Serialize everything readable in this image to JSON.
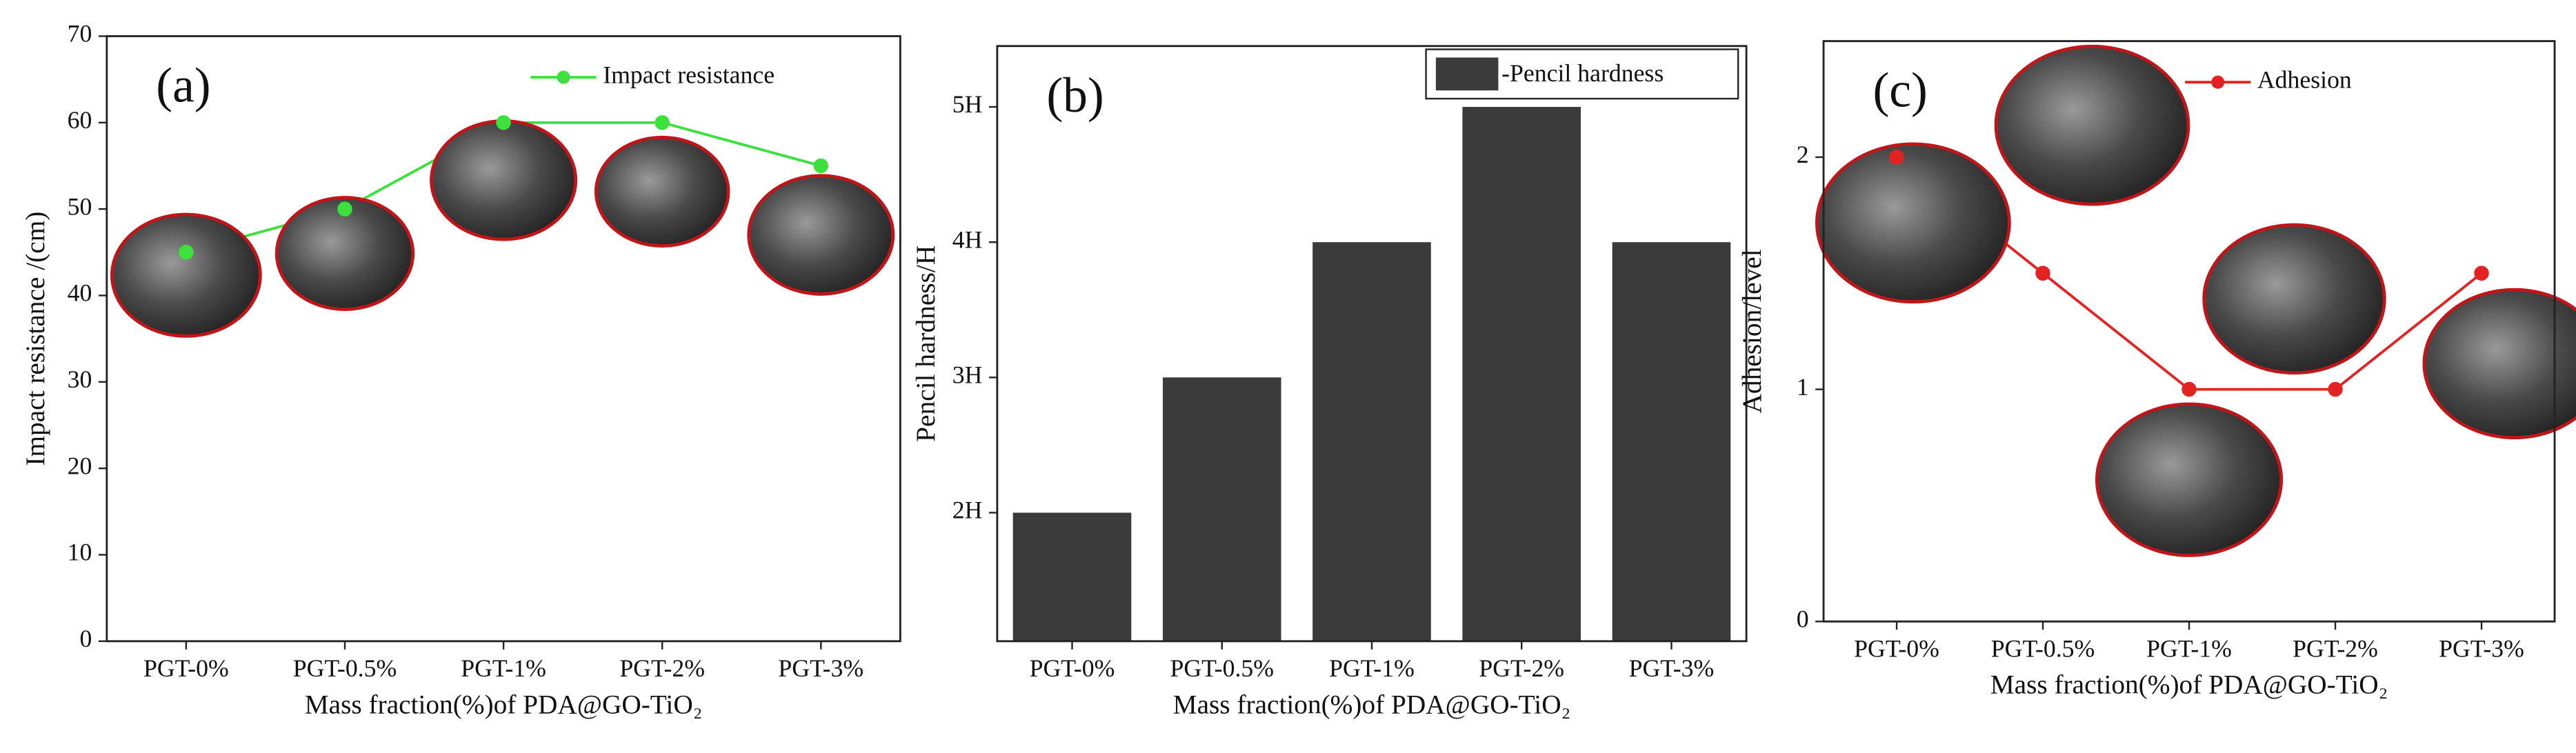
{
  "chart_data": [
    {
      "type": "line",
      "panel_label": "(a)",
      "x_label": "Mass fraction(%)of PDA@GO-TiO₂",
      "y_label": "Impact resistance /(cm)",
      "categories": [
        "PGT-0%",
        "PGT-0.5%",
        "PGT-1%",
        "PGT-2%",
        "PGT-3%"
      ],
      "series": [
        {
          "name": "Impact resistance",
          "color": "#3ee03e",
          "values": [
            45,
            50,
            60,
            60,
            55
          ]
        }
      ],
      "ylim": [
        0,
        70
      ],
      "yticks": [
        0,
        10,
        20,
        30,
        40,
        50,
        60,
        70
      ],
      "legend": "upper right"
    },
    {
      "type": "bar",
      "panel_label": "(b)",
      "x_label": "Mass fraction(%)of PDA@GO-TiO₂",
      "y_label": "Pencil hardness/H",
      "categories": [
        "PGT-0%",
        "PGT-0.5%",
        "PGT-1%",
        "PGT-2%",
        "PGT-3%"
      ],
      "series": [
        {
          "name": "-Pencil hardness",
          "color": "#3b3b3b",
          "values": [
            2,
            3,
            4,
            5,
            4
          ]
        }
      ],
      "ylim": [
        1.05,
        5.45
      ],
      "yticks": [
        {
          "value": 2,
          "label": "2H"
        },
        {
          "value": 3,
          "label": "3H"
        },
        {
          "value": 4,
          "label": "4H"
        },
        {
          "value": 5,
          "label": "5H"
        }
      ],
      "legend": "upper right"
    },
    {
      "type": "line",
      "panel_label": "(c)",
      "x_label": "Mass fraction(%)of PDA@GO-TiO₂",
      "y_label": "Adhesion/level",
      "categories": [
        "PGT-0%",
        "PGT-0.5%",
        "PGT-1%",
        "PGT-2%",
        "PGT-3%"
      ],
      "series": [
        {
          "name": "Adhesion",
          "color": "#e32222",
          "values": [
            2,
            1.5,
            1,
            1,
            1.5
          ]
        }
      ],
      "ylim": [
        0,
        2.5
      ],
      "yticks": [
        0,
        1,
        2
      ],
      "legend": "upper right"
    }
  ]
}
